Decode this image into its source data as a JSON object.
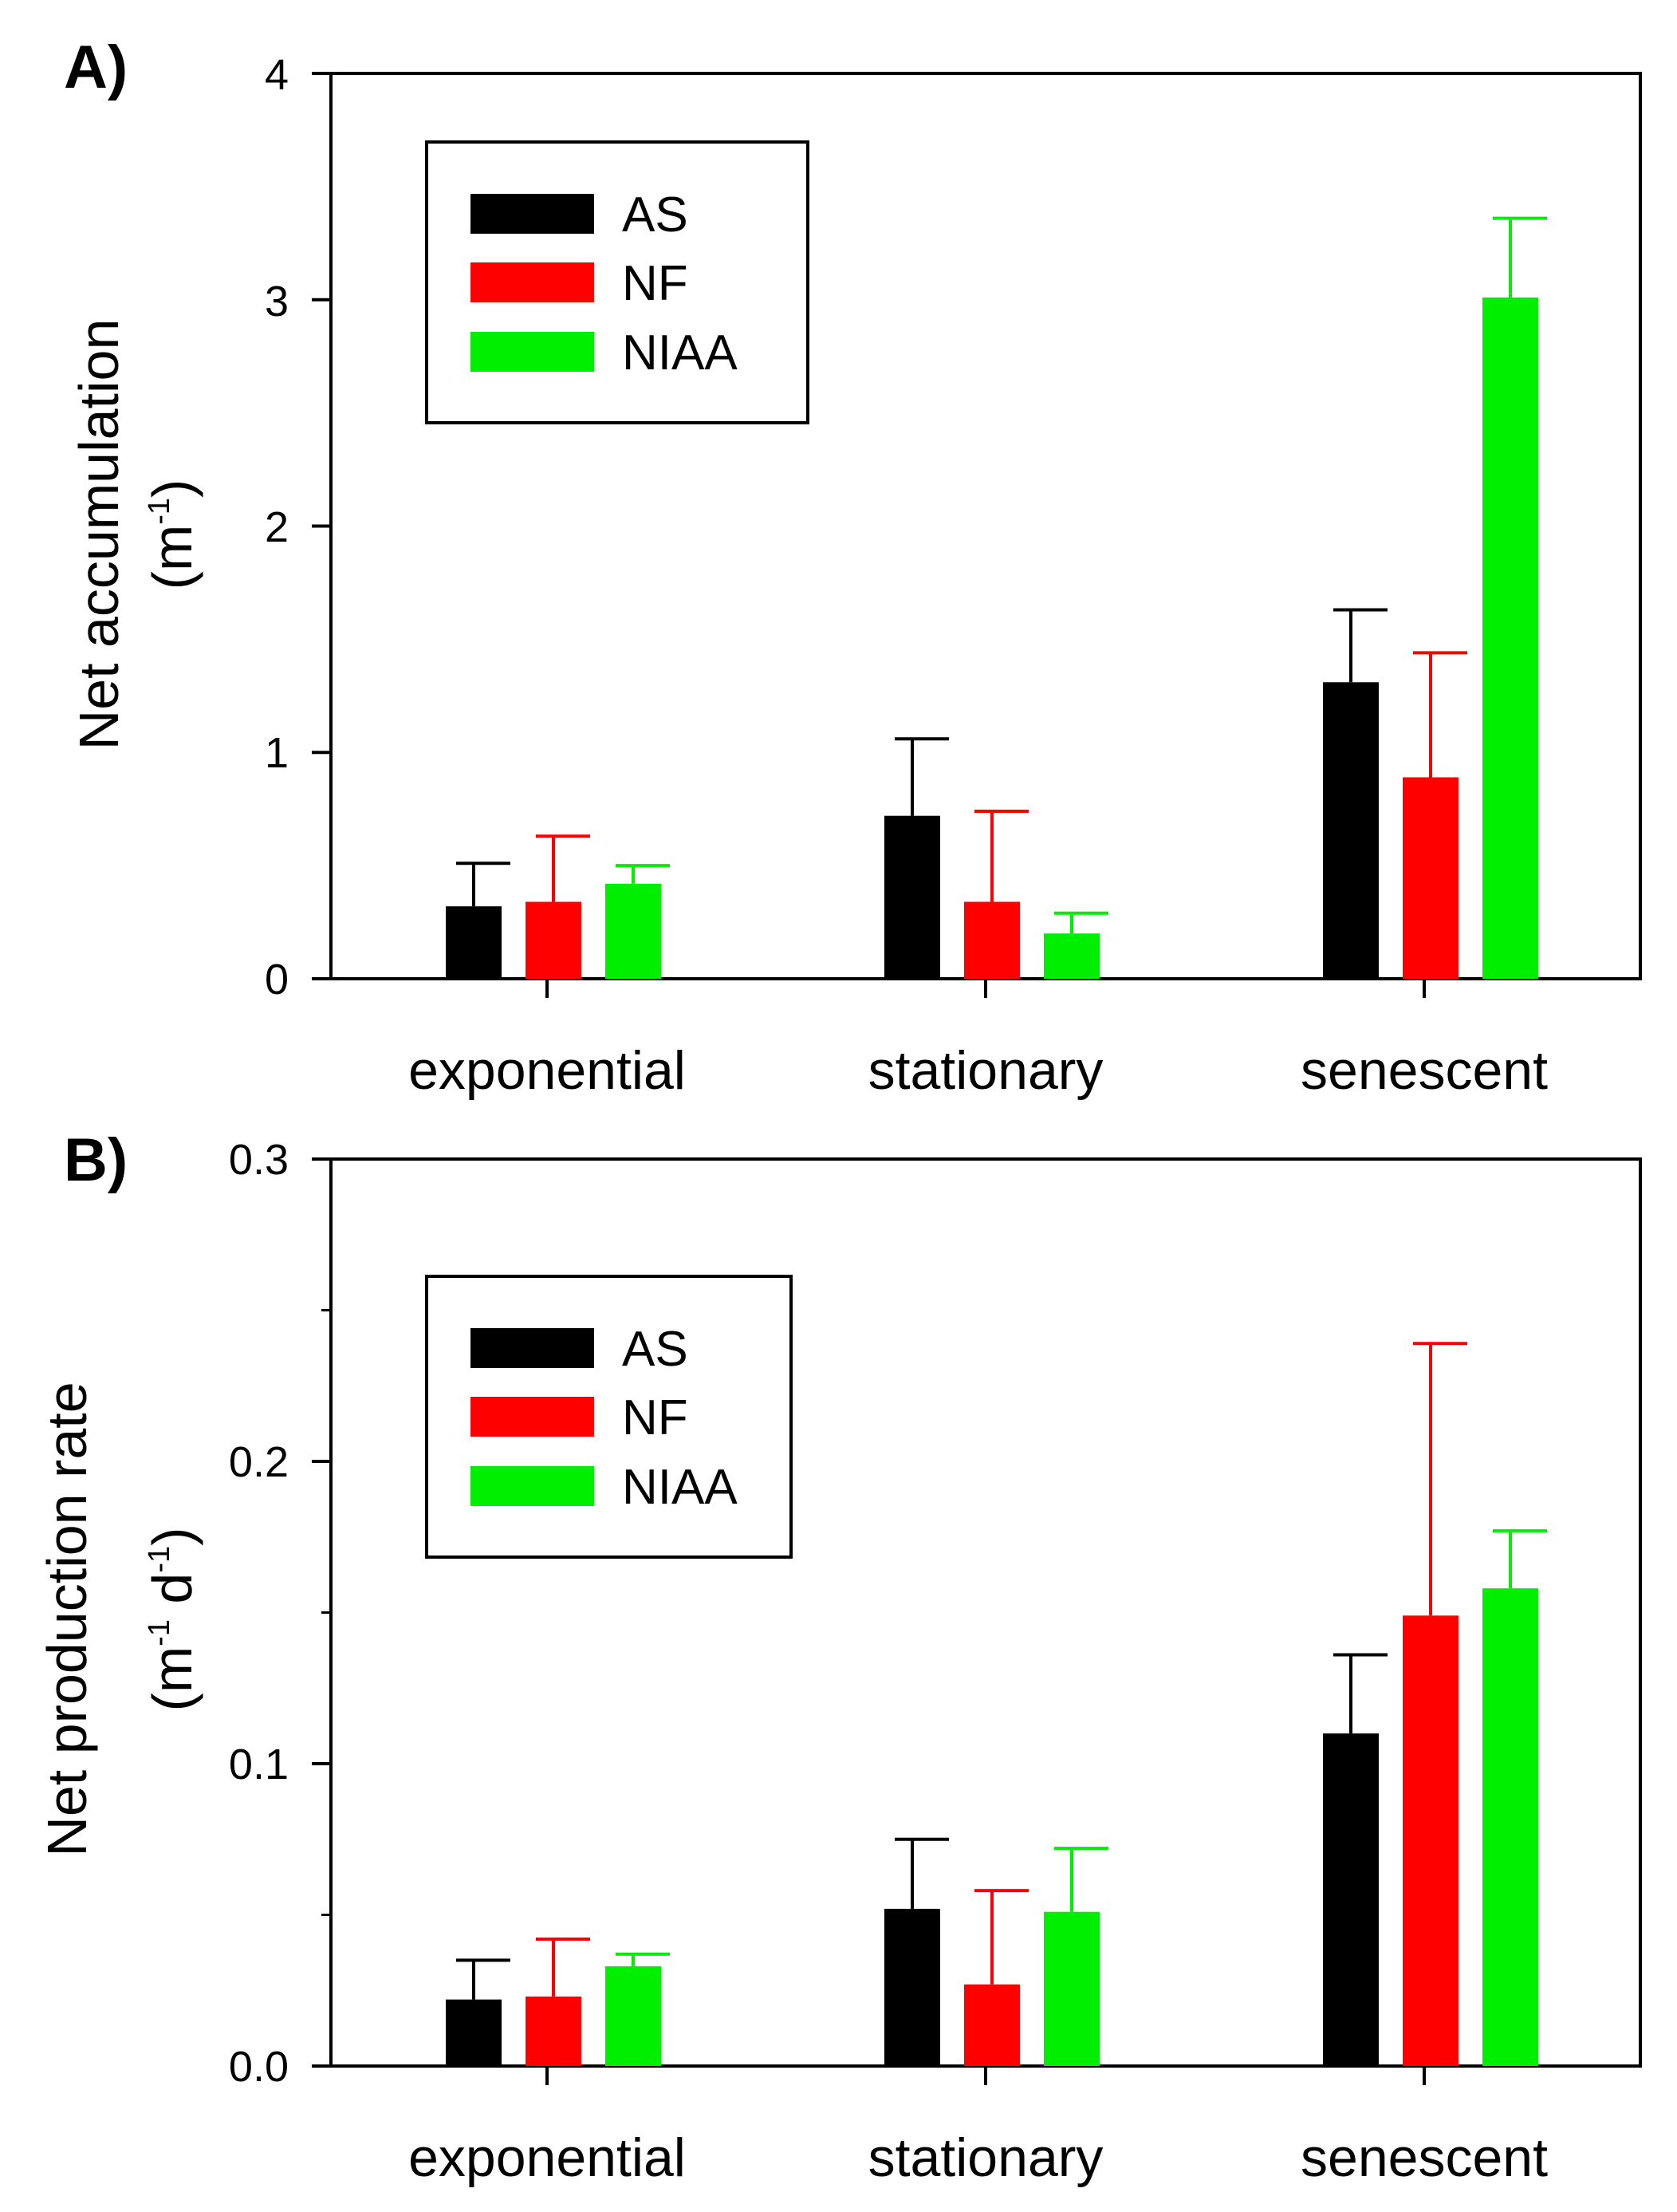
{
  "colors": {
    "AS": "#000000",
    "NF": "#ff0000",
    "NIAA": "#00ee00"
  },
  "chart_data": [
    {
      "type": "bar",
      "panel": "A)",
      "categories": [
        "exponential",
        "stationary",
        "senescent"
      ],
      "series": [
        {
          "name": "AS",
          "values": [
            0.32,
            0.72,
            1.31
          ],
          "errors": [
            0.19,
            0.34,
            0.32
          ]
        },
        {
          "name": "NF",
          "values": [
            0.34,
            0.34,
            0.89
          ],
          "errors": [
            0.29,
            0.4,
            0.55
          ]
        },
        {
          "name": "NIAA",
          "values": [
            0.42,
            0.2,
            3.01
          ],
          "errors": [
            0.08,
            0.09,
            0.35
          ]
        }
      ],
      "ylabel_main": "Net accumulation",
      "ylabel_unit_open": "(m",
      "ylabel_unit_sup": "-1",
      "ylabel_unit_close": ")",
      "ylim": [
        0,
        4
      ],
      "yticks": [
        "0",
        "1",
        "2",
        "3",
        "4"
      ],
      "legend": [
        "AS",
        "NF",
        "NIAA"
      ],
      "legend_position": "top-left"
    },
    {
      "type": "bar",
      "panel": "B)",
      "categories": [
        "exponential",
        "stationary",
        "senescent"
      ],
      "series": [
        {
          "name": "AS",
          "values": [
            0.022,
            0.052,
            0.11
          ],
          "errors": [
            0.013,
            0.023,
            0.026
          ]
        },
        {
          "name": "NF",
          "values": [
            0.023,
            0.027,
            0.149
          ],
          "errors": [
            0.019,
            0.031,
            0.09
          ]
        },
        {
          "name": "NIAA",
          "values": [
            0.033,
            0.051,
            0.158
          ],
          "errors": [
            0.004,
            0.021,
            0.019
          ]
        }
      ],
      "ylabel_main": "Net production rate",
      "ylabel_unit_open": "(m",
      "ylabel_unit_sup": "-1",
      "ylabel_unit_mid": " d",
      "ylabel_unit_sup2": "-1",
      "ylabel_unit_close": ")",
      "ylim": [
        0,
        0.3
      ],
      "yticks": [
        "0.0",
        "0.1",
        "0.2",
        "0.3"
      ],
      "yminor_ticks": [
        0.05,
        0.15,
        0.25
      ],
      "legend": [
        "AS",
        "NF",
        "NIAA"
      ],
      "legend_position": "top-left"
    }
  ]
}
